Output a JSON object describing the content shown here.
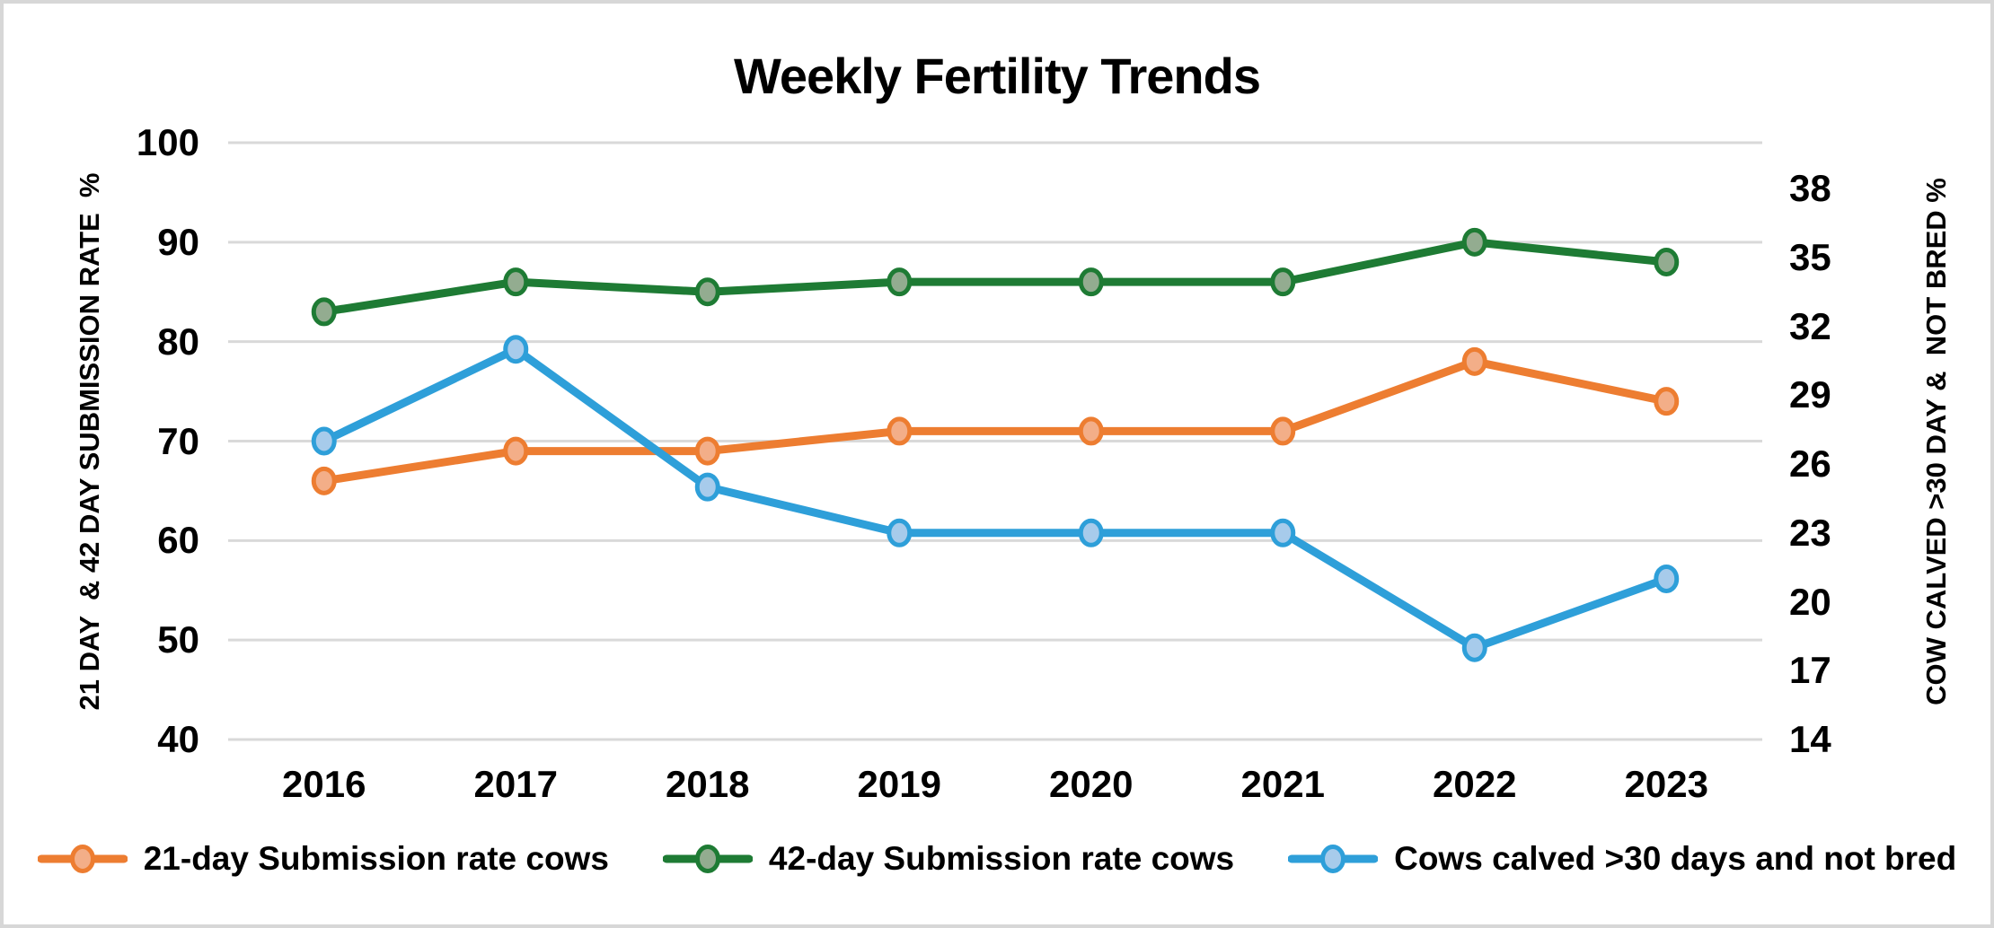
{
  "chart_data": {
    "type": "line",
    "title": "Weekly Fertility Trends",
    "categories": [
      "2016",
      "2017",
      "2018",
      "2019",
      "2020",
      "2021",
      "2022",
      "2023"
    ],
    "series": [
      {
        "name": "21-day Submission rate cows",
        "axis": "left",
        "line_color": "#ED7D31",
        "marker_fill": "#F3AE88",
        "values": [
          66,
          69,
          69,
          71,
          71,
          71,
          78,
          74
        ]
      },
      {
        "name": "42-day Submission rate cows",
        "axis": "left",
        "line_color": "#1E7B34",
        "marker_fill": "#93AC90",
        "values": [
          83,
          86,
          85,
          86,
          86,
          86,
          90,
          88
        ]
      },
      {
        "name": "Cows calved >30 days and not bred",
        "axis": "right",
        "line_color": "#2E9FD9",
        "marker_fill": "#A7CBEB",
        "values": [
          27,
          31,
          25,
          23,
          23,
          23,
          18,
          21
        ]
      }
    ],
    "left_axis": {
      "label": "21 DAY  & 42 DAY SUBMISSION RATE  %",
      "min": 40,
      "max": 100,
      "ticks": [
        100,
        90,
        80,
        70,
        60,
        50,
        40
      ]
    },
    "right_axis": {
      "label": "COW CALVED >30 DAY &  NOT BRED %",
      "min": 14,
      "max": 40,
      "ticks": [
        38,
        35,
        32,
        29,
        26,
        23,
        20,
        17,
        14
      ]
    },
    "grid": true,
    "grid_color": "#D9D9D9",
    "background_color": "#FFFFFF",
    "frame_border_color": "#D7D7D7",
    "legend_position": "bottom"
  }
}
